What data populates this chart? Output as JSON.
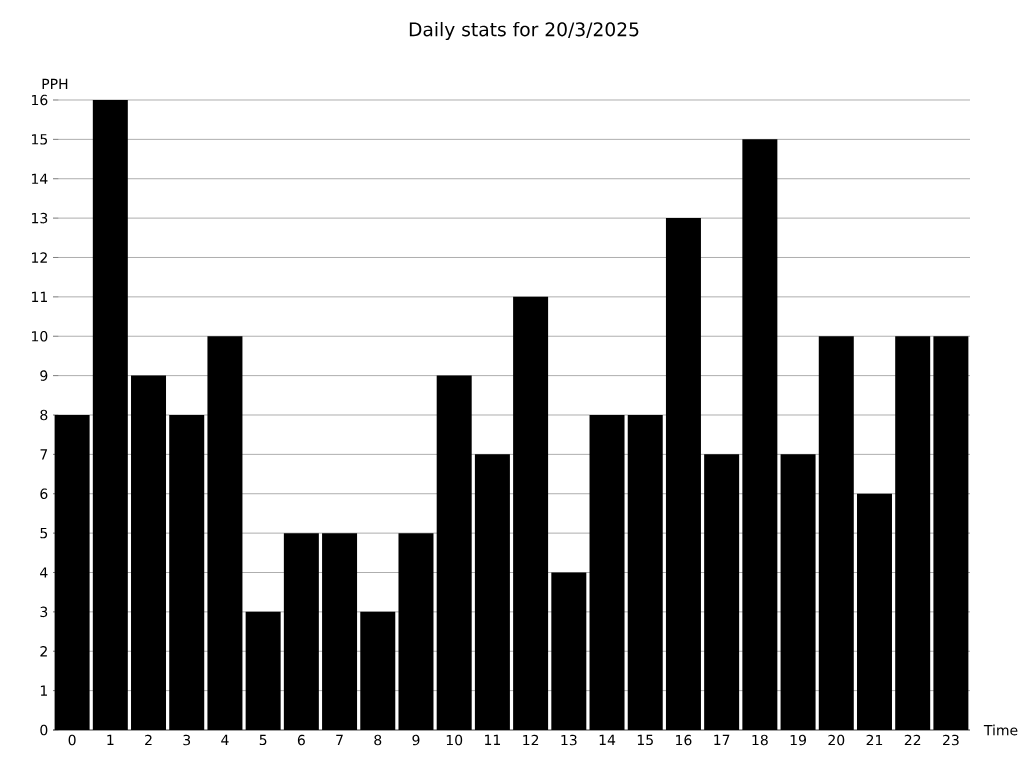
{
  "chart_data": {
    "type": "bar",
    "title": "Daily stats for 20/3/2025",
    "xlabel": "Time",
    "ylabel": "PPH",
    "categories": [
      "0",
      "1",
      "2",
      "3",
      "4",
      "5",
      "6",
      "7",
      "8",
      "9",
      "10",
      "11",
      "12",
      "13",
      "14",
      "15",
      "16",
      "17",
      "18",
      "19",
      "20",
      "21",
      "22",
      "23"
    ],
    "values": [
      8,
      16,
      9,
      8,
      10,
      3,
      5,
      5,
      3,
      5,
      9,
      7,
      11,
      4,
      8,
      8,
      13,
      7,
      15,
      7,
      10,
      6,
      10,
      10
    ],
    "color": "#000000",
    "ylim": [
      0,
      16
    ],
    "yticks": [
      0,
      1,
      2,
      3,
      4,
      5,
      6,
      7,
      8,
      9,
      10,
      11,
      12,
      13,
      14,
      15,
      16
    ],
    "grid": "y"
  }
}
